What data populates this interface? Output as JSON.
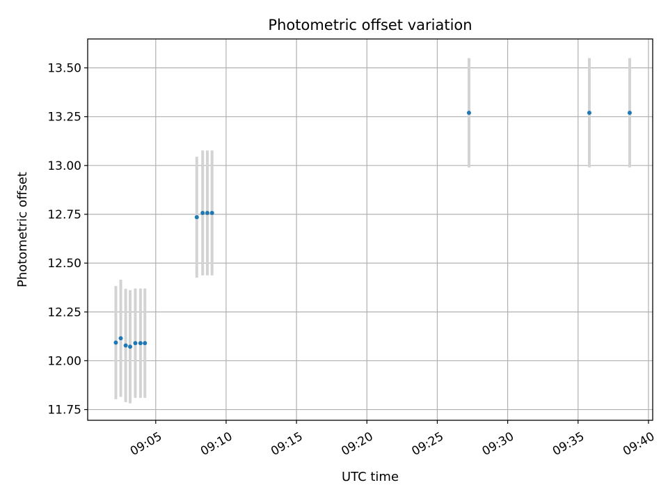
{
  "chart_data": {
    "type": "scatter",
    "title": "Photometric offset variation",
    "xlabel": "UTC time",
    "ylabel": "Photometric offset",
    "x_unit": "UTC time (HH:MM)",
    "xlim": [
      "09:00:10",
      "09:40:18"
    ],
    "ylim": [
      11.695,
      13.648
    ],
    "grid": true,
    "x_ticks": [
      "09:05",
      "09:10",
      "09:15",
      "09:20",
      "09:25",
      "09:30",
      "09:35",
      "09:40"
    ],
    "y_ticks": [
      "11.75",
      "12.00",
      "12.25",
      "12.50",
      "12.75",
      "13.00",
      "13.25",
      "13.50"
    ],
    "point_color": "#1f77b4",
    "errorbar_color": "#d3d3d3",
    "points": [
      {
        "x": "09:02:10",
        "y": 12.093,
        "err": 0.29
      },
      {
        "x": "09:02:31",
        "y": 12.115,
        "err": 0.3
      },
      {
        "x": "09:02:52",
        "y": 12.078,
        "err": 0.29
      },
      {
        "x": "09:03:11",
        "y": 12.072,
        "err": 0.29
      },
      {
        "x": "09:03:33",
        "y": 12.09,
        "err": 0.28
      },
      {
        "x": "09:03:55",
        "y": 12.09,
        "err": 0.28
      },
      {
        "x": "09:04:14",
        "y": 12.09,
        "err": 0.28
      },
      {
        "x": "09:07:55",
        "y": 12.735,
        "err": 0.31
      },
      {
        "x": "09:08:20",
        "y": 12.757,
        "err": 0.32
      },
      {
        "x": "09:08:40",
        "y": 12.757,
        "err": 0.32
      },
      {
        "x": "09:09:00",
        "y": 12.757,
        "err": 0.32
      },
      {
        "x": "09:27:15",
        "y": 13.27,
        "err": 0.28
      },
      {
        "x": "09:35:48",
        "y": 13.27,
        "err": 0.28
      },
      {
        "x": "09:38:40",
        "y": 13.27,
        "err": 0.28
      }
    ]
  }
}
